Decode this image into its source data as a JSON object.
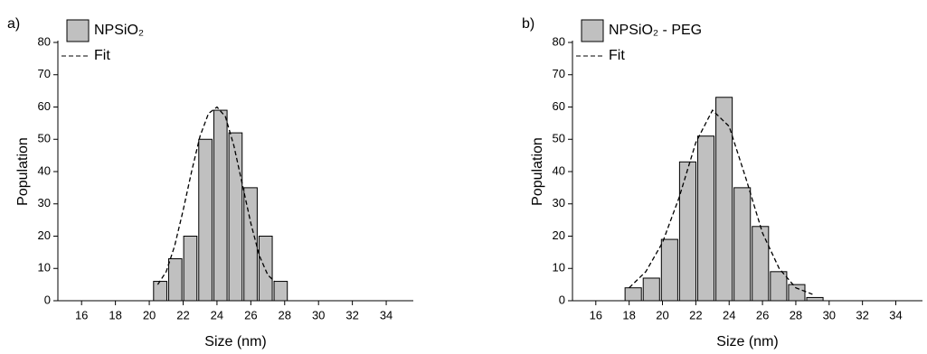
{
  "chart_data": [
    {
      "type": "histogram",
      "panel_label": "a)",
      "xlabel": "Size (nm)",
      "ylabel": "Population",
      "xlim": [
        14.6,
        35.6
      ],
      "xticks": [
        16,
        18,
        20,
        22,
        24,
        26,
        28,
        30,
        32,
        34
      ],
      "ylim": [
        0,
        80
      ],
      "yticks": [
        0,
        10,
        20,
        30,
        40,
        50,
        60,
        70,
        80
      ],
      "bins": [
        20.2,
        21.09,
        21.98,
        22.87,
        23.76,
        24.65,
        25.54,
        26.43,
        27.32,
        28.21
      ],
      "series": [
        {
          "name": "NPSiO₂",
          "color": "#c0c0c0",
          "values": [
            6,
            13,
            20,
            50,
            59,
            52,
            35,
            20,
            6
          ]
        },
        {
          "name": "Fit",
          "type": "line",
          "style": "dashed",
          "color": "#000000",
          "x": [
            20.5,
            21,
            21.5,
            22,
            22.5,
            23,
            23.5,
            24,
            24.5,
            25,
            25.5,
            26,
            26.5,
            27,
            27.4
          ],
          "values": [
            5,
            9,
            17,
            28,
            40,
            51,
            58,
            60,
            57,
            48,
            36,
            24,
            14,
            8,
            6
          ]
        }
      ]
    },
    {
      "type": "histogram",
      "panel_label": "b)",
      "xlabel": "Size (nm)",
      "ylabel": "Population",
      "xlim": [
        14.6,
        35.6
      ],
      "xticks": [
        16,
        18,
        20,
        22,
        24,
        26,
        28,
        30,
        32,
        34
      ],
      "ylim": [
        0,
        80
      ],
      "yticks": [
        0,
        10,
        20,
        30,
        40,
        50,
        60,
        70,
        80
      ],
      "bins": [
        17.7,
        18.79,
        19.88,
        20.97,
        22.06,
        23.15,
        24.24,
        25.33,
        26.42,
        27.51,
        28.6,
        29.69
      ],
      "series": [
        {
          "name": "NPSiO₂ - PEG",
          "color": "#c0c0c0",
          "values": [
            4,
            7,
            19,
            43,
            51,
            63,
            35,
            23,
            9,
            5,
            1
          ]
        },
        {
          "name": "Fit",
          "type": "line",
          "style": "dashed",
          "color": "#000000",
          "x": [
            18,
            19,
            20,
            21,
            22,
            23,
            24,
            25,
            26,
            27,
            28,
            29
          ],
          "values": [
            4,
            9,
            18,
            32,
            49,
            59,
            54,
            38,
            21,
            10,
            4,
            2
          ]
        }
      ]
    }
  ]
}
